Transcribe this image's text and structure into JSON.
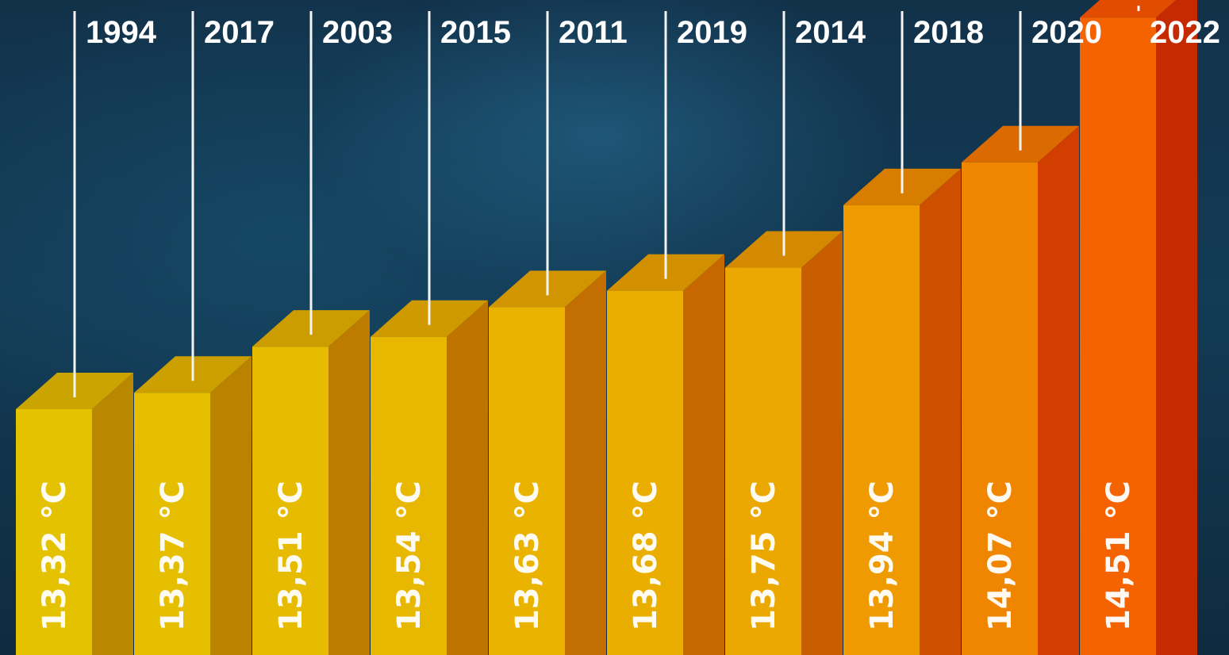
{
  "chart_data": {
    "type": "bar",
    "title": "",
    "xlabel": "",
    "ylabel": "",
    "categories": [
      "1994",
      "2017",
      "2003",
      "2015",
      "2011",
      "2019",
      "2014",
      "2018",
      "2020",
      "2022"
    ],
    "values": [
      13.32,
      13.37,
      13.51,
      13.54,
      13.63,
      13.68,
      13.75,
      13.94,
      14.07,
      14.51
    ],
    "value_labels": [
      "13,32 °C",
      "13,37 °C",
      "13,51 °C",
      "13,54 °C",
      "13,63 °C",
      "13,68 °C",
      "13,75 °C",
      "13,94 °C",
      "14,07 °C",
      "14,51 °C"
    ],
    "unit": "°C",
    "ylim": [
      13.0,
      14.6
    ],
    "grid": false,
    "legend": "none",
    "style": "3d-columns",
    "bar_front_colors": [
      "#e4c200",
      "#e5be00",
      "#e6bb00",
      "#e8b700",
      "#e9b300",
      "#eaae00",
      "#eba800",
      "#ee9a00",
      "#f08600",
      "#f56300"
    ],
    "bar_side_colors": [
      "#b98800",
      "#bb8200",
      "#bd7b00",
      "#c07400",
      "#c26e00",
      "#c66700",
      "#c95e00",
      "#ce4f00",
      "#d23d00",
      "#c52a00"
    ],
    "bar_top_colors": [
      "#caa400",
      "#cba000",
      "#cc9d00",
      "#cf9900",
      "#d09500",
      "#d29000",
      "#d48a00",
      "#d77d00",
      "#db6b00",
      "#e24c00"
    ],
    "label_color": "#ffffff",
    "background_color": "#133b55"
  }
}
